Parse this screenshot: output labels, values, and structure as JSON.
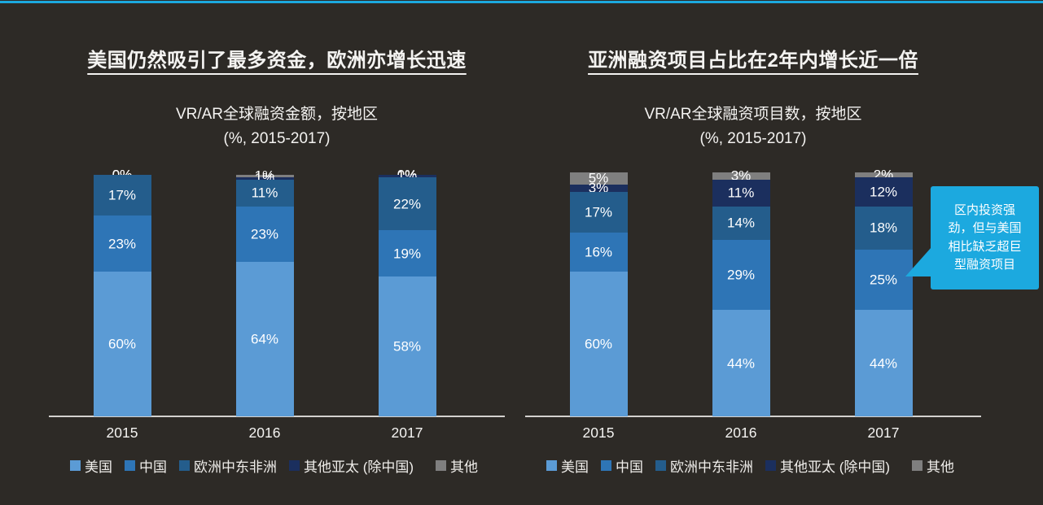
{
  "page": {
    "background": "#2D2A26",
    "accent_color": "#1CA9DF",
    "axis_color": "#D4D2CF",
    "text_color": "#F4F3F1"
  },
  "callout": {
    "text": "区内投资强劲，但与美国相比缺乏超巨型融资项目",
    "color": "#1CA9DF"
  },
  "chart_data": [
    {
      "type": "bar",
      "stacked": true,
      "title": "美国仍然吸引了最多资金，欧洲亦增长迅速",
      "subtitle": "VR/AR全球融资金额，按地区",
      "subtitle_note": "(%, 2015-2017)",
      "categories": [
        "2015",
        "2016",
        "2017"
      ],
      "series": [
        {
          "name": "美国",
          "color": "#5B9BD5",
          "values": [
            60,
            64,
            58
          ]
        },
        {
          "name": "中国",
          "color": "#2E75B6",
          "values": [
            23,
            23,
            19
          ]
        },
        {
          "name": "欧洲中东非洲",
          "color": "#245D8C",
          "values": [
            17,
            11,
            22
          ]
        },
        {
          "name": "其他亚太 (除中国)",
          "color": "#1B2F5E",
          "values": [
            0,
            1,
            1
          ]
        },
        {
          "name": "其他",
          "color": "#7F7F7F",
          "values": [
            0,
            1,
            0
          ]
        }
      ],
      "unit": "%",
      "ylim": [
        0,
        100
      ],
      "grid": false,
      "legend_position": "bottom",
      "data_labels": true
    },
    {
      "type": "bar",
      "stacked": true,
      "title": "亚洲融资项目占比在2年内增长近一倍",
      "subtitle": "VR/AR全球融资项目数，按地区",
      "subtitle_note": "(%, 2015-2017)",
      "categories": [
        "2015",
        "2016",
        "2017"
      ],
      "series": [
        {
          "name": "美国",
          "color": "#5B9BD5",
          "values": [
            60,
            44,
            44
          ]
        },
        {
          "name": "中国",
          "color": "#2E75B6",
          "values": [
            16,
            29,
            25
          ]
        },
        {
          "name": "欧洲中东非洲",
          "color": "#245D8C",
          "values": [
            17,
            14,
            18
          ]
        },
        {
          "name": "其他亚太 (除中国)",
          "color": "#1B2F5E",
          "values": [
            3,
            11,
            12
          ]
        },
        {
          "name": "其他",
          "color": "#7F7F7F",
          "values": [
            5,
            3,
            2
          ]
        }
      ],
      "unit": "%",
      "ylim": [
        0,
        100
      ],
      "grid": false,
      "legend_position": "bottom",
      "data_labels": true
    }
  ]
}
